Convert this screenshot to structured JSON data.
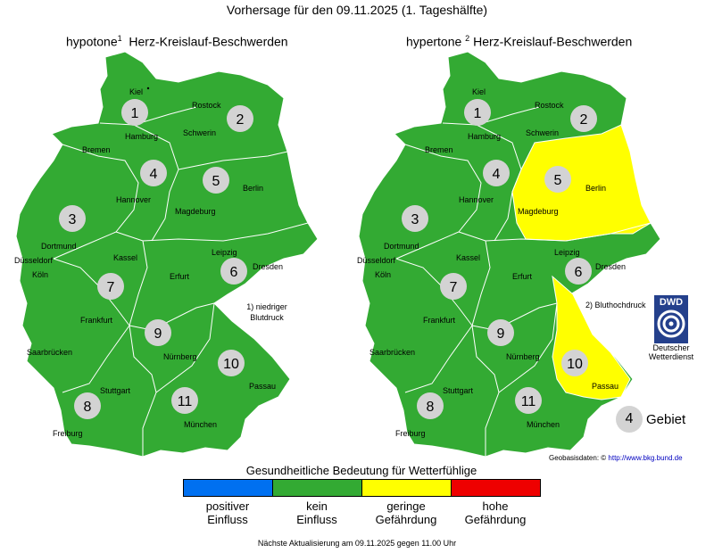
{
  "title": "Vorhersage für den 09.11.2025 (1. Tageshälfte)",
  "left_map": {
    "title_main": "hypotone",
    "title_sup": "1",
    "title_rest": "Herz-Kreislauf-Beschwerden",
    "note_line1": "1) niedriger",
    "note_line2": "Blutdruck",
    "regions": [
      {
        "id": "1",
        "level": "kein Einfluss"
      },
      {
        "id": "2",
        "level": "kein Einfluss"
      },
      {
        "id": "3",
        "level": "kein Einfluss"
      },
      {
        "id": "4",
        "level": "kein Einfluss"
      },
      {
        "id": "5",
        "level": "kein Einfluss"
      },
      {
        "id": "6",
        "level": "kein Einfluss"
      },
      {
        "id": "7",
        "level": "kein Einfluss"
      },
      {
        "id": "8",
        "level": "kein Einfluss"
      },
      {
        "id": "9",
        "level": "kein Einfluss"
      },
      {
        "id": "10",
        "level": "kein Einfluss"
      },
      {
        "id": "11",
        "level": "kein Einfluss"
      }
    ]
  },
  "right_map": {
    "title_main": "hypertone",
    "title_sup": "2",
    "title_rest": "Herz-Kreislauf-Beschwerden",
    "note": "2) Bluthochdruck",
    "regions": [
      {
        "id": "1",
        "level": "kein Einfluss"
      },
      {
        "id": "2",
        "level": "kein Einfluss"
      },
      {
        "id": "3",
        "level": "kein Einfluss"
      },
      {
        "id": "4",
        "level": "kein Einfluss"
      },
      {
        "id": "5",
        "level": "geringe Gefährdung"
      },
      {
        "id": "6",
        "level": "kein Einfluss"
      },
      {
        "id": "7",
        "level": "kein Einfluss"
      },
      {
        "id": "8",
        "level": "kein Einfluss"
      },
      {
        "id": "9",
        "level": "kein Einfluss"
      },
      {
        "id": "10",
        "level": "geringe Gefährdung"
      },
      {
        "id": "11",
        "level": "kein Einfluss"
      }
    ]
  },
  "cities": [
    "Kiel",
    "Rostock",
    "Hamburg",
    "Schwerin",
    "Bremen",
    "Hannover",
    "Berlin",
    "Magdeburg",
    "Dortmund",
    "Düsseldorf",
    "Köln",
    "Kassel",
    "Leipzig",
    "Dresden",
    "Erfurt",
    "Frankfurt",
    "Nürnberg",
    "Saarbrücken",
    "Stuttgart",
    "Passau",
    "München",
    "Freiburg"
  ],
  "dwd": {
    "logo_text": "DWD",
    "label_line1": "Deutscher",
    "label_line2": "Wetterdienst"
  },
  "gebiet": {
    "number": "4",
    "label": "Gebiet"
  },
  "geobasis": {
    "label": "Geobasisdaten: ©",
    "link": "http://www.bkg.bund.de"
  },
  "legend": {
    "title": "Gesundheitliche Bedeutung für Wetterfühlige",
    "items": [
      {
        "line1": "positiver",
        "line2": "Einfluss",
        "color": "#0070f0"
      },
      {
        "line1": "kein",
        "line2": "Einfluss",
        "color": "#33aa33"
      },
      {
        "line1": "geringe",
        "line2": "Gefährdung",
        "color": "#ffff00"
      },
      {
        "line1": "hohe",
        "line2": "Gefährdung",
        "color": "#ee0000"
      }
    ]
  },
  "footer": "Nächste Aktualisierung am 09.11.2025 gegen 11.00 Uhr"
}
